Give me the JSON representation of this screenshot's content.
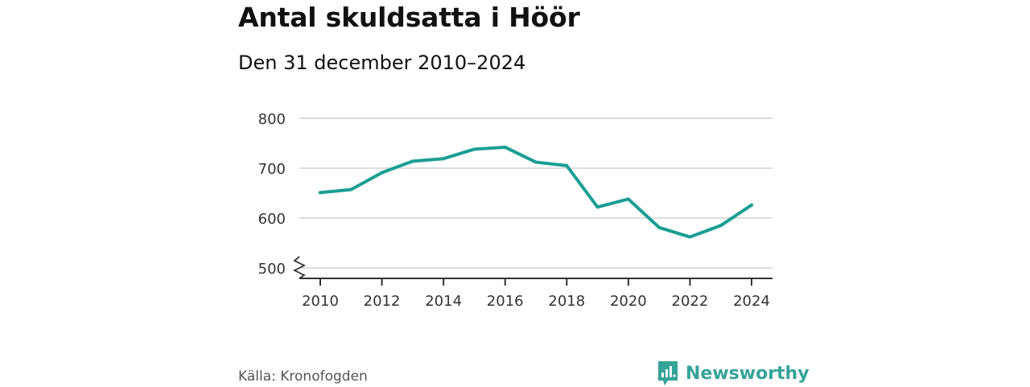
{
  "title": "Antal skuldsatta i Höör",
  "subtitle": "Den 31 december 2010–2024",
  "source": "Källa: Kronofogden",
  "brand": "Newsworthy",
  "colors": {
    "line": "#1a9e94",
    "grid": "#d4d4d4",
    "axis": "#333333",
    "brand": "#36a399"
  },
  "chart_data": {
    "type": "line",
    "x": [
      2010,
      2011,
      2012,
      2013,
      2014,
      2015,
      2016,
      2017,
      2018,
      2019,
      2020,
      2021,
      2022,
      2023,
      2024
    ],
    "series": [
      {
        "values": [
          651,
          657,
          691,
          714,
          719,
          738,
          742,
          712,
          705,
          622,
          638,
          581,
          562,
          585,
          626
        ]
      }
    ],
    "ylim": [
      500,
      800
    ],
    "yticks": [
      500,
      600,
      700,
      800
    ],
    "xticks": [
      2010,
      2012,
      2014,
      2016,
      2018,
      2020,
      2022,
      2024
    ],
    "grid": true,
    "axis_break": true,
    "xlabel": "",
    "ylabel": ""
  }
}
